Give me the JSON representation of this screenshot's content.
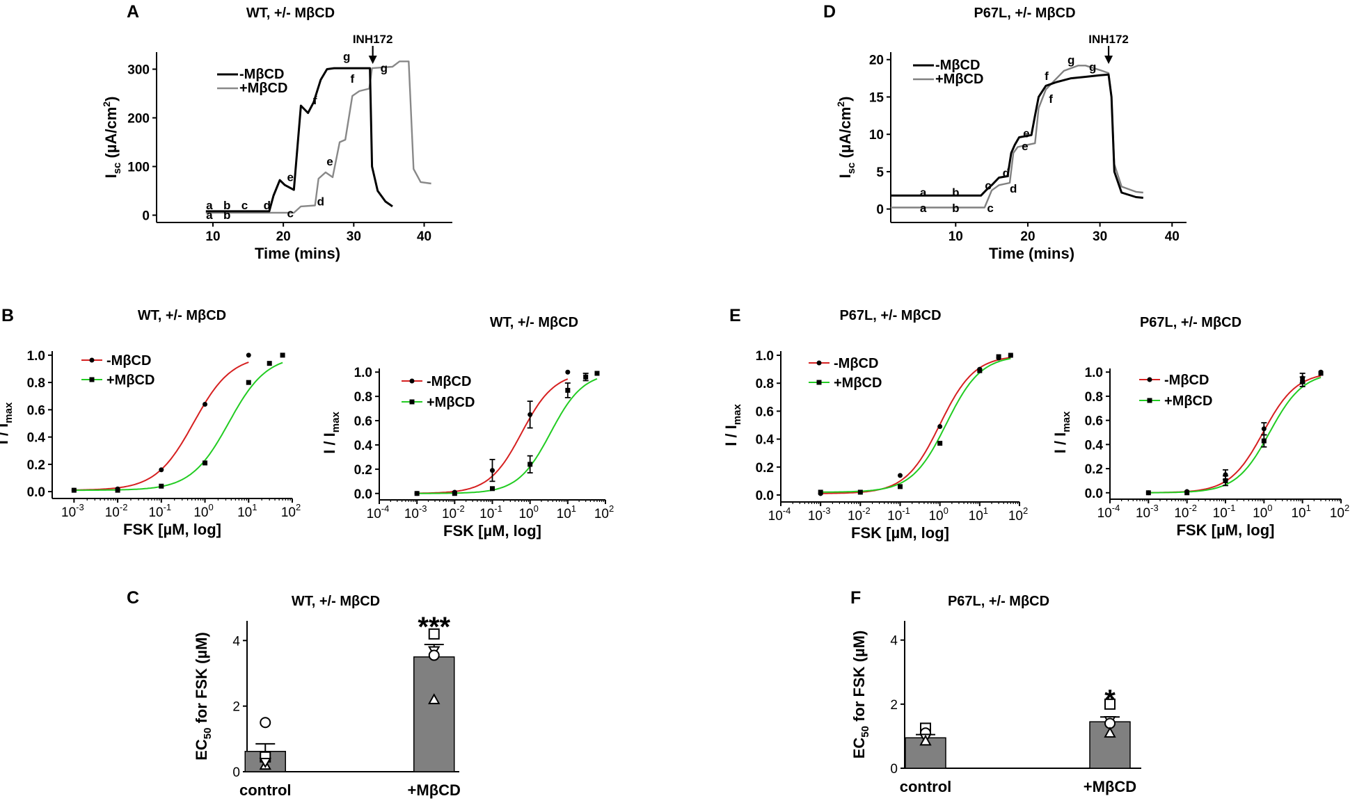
{
  "figure": {
    "panel_labels": [
      "A",
      "B",
      "C",
      "D",
      "E",
      "F"
    ]
  },
  "chart_data": [
    {
      "id": "A",
      "type": "line",
      "title": "WT, +/- MβCD",
      "xlabel": "Time (mins)",
      "ylabel": "Isc (µA/cm²)",
      "ylabel_parts": {
        "main": "I",
        "sub": "sc",
        "unit": " (µA/cm",
        "sup": "2",
        "close": ")"
      },
      "xlim": [
        2,
        44
      ],
      "ylim": [
        -15,
        335
      ],
      "xticks": [
        10,
        20,
        30,
        40
      ],
      "yticks": [
        0,
        100,
        200,
        300
      ],
      "annotation": "INH172",
      "annotation_x": 32.7,
      "series": [
        {
          "name": "-MβCD",
          "color": "#000000",
          "x": [
            9,
            18,
            18.6,
            19.5,
            20.2,
            21.5,
            22.5,
            23.5,
            24.3,
            25.3,
            26.2,
            27.2,
            32.3,
            32.6,
            33.4,
            34.5,
            35.5
          ],
          "y": [
            8,
            8,
            40,
            72,
            62,
            52,
            225,
            210,
            232,
            278,
            300,
            302,
            302,
            100,
            50,
            28,
            18
          ]
        },
        {
          "name": "+MβCD",
          "color": "#888888",
          "x": [
            9,
            21.5,
            22.5,
            24.5,
            25,
            26,
            27,
            28,
            28.8,
            29.8,
            30.8,
            32.2,
            32.6,
            35.5,
            36.5,
            37.8,
            38.5,
            39.5,
            41
          ],
          "y": [
            5,
            5,
            18,
            20,
            75,
            88,
            78,
            150,
            155,
            245,
            255,
            260,
            302,
            305,
            316,
            316,
            95,
            68,
            65
          ]
        }
      ],
      "labels_black": [
        "a",
        "b",
        "c",
        "d",
        "e",
        "f",
        "g"
      ],
      "labels_gray": [
        "a",
        "b",
        "c",
        "d",
        "e",
        "f",
        "g"
      ]
    },
    {
      "id": "D",
      "type": "line",
      "title": "P67L, +/- MβCD",
      "xlabel": "Time (mins)",
      "ylabel": "Isc (µA/cm²)",
      "ylabel_parts": {
        "main": "I",
        "sub": "sc",
        "unit": " (µA/cm",
        "sup": "2",
        "close": ")"
      },
      "xlim": [
        1,
        42
      ],
      "ylim": [
        -1.8,
        21
      ],
      "xticks": [
        10,
        20,
        30,
        40
      ],
      "yticks": [
        0,
        5,
        10,
        15,
        20
      ],
      "annotation": "INH172",
      "annotation_x": 31.2,
      "series": [
        {
          "name": "-MβCD",
          "color": "#000000",
          "x": [
            1,
            13.5,
            14.2,
            15,
            16,
            17.2,
            17.7,
            18.2,
            18.8,
            20.5,
            21,
            21.5,
            22.5,
            24,
            26,
            28,
            30,
            31.2,
            31.6,
            32,
            33,
            35,
            36
          ],
          "y": [
            1.8,
            1.8,
            2.5,
            3.2,
            4.2,
            4.4,
            7.5,
            8.6,
            9.6,
            9.9,
            12.5,
            15,
            16.5,
            17,
            17.5,
            17.7,
            17.9,
            18,
            15,
            5,
            2.2,
            1.6,
            1.5
          ]
        },
        {
          "name": "+MβCD",
          "color": "#808080",
          "x": [
            1,
            14,
            15,
            16,
            17.5,
            18,
            18.6,
            19.5,
            21,
            21.5,
            22.5,
            24,
            25,
            27,
            28,
            30,
            31.2,
            31.6,
            32,
            33,
            35,
            36
          ],
          "y": [
            0.2,
            0.2,
            2.5,
            3.2,
            3.5,
            7.5,
            8.3,
            8.5,
            8.8,
            13.5,
            16,
            17.5,
            18.5,
            19.2,
            19.2,
            18.6,
            18.2,
            15,
            6,
            3,
            2.3,
            2.2
          ]
        }
      ],
      "labels_black": [
        "a",
        "b",
        "c",
        "d",
        "e",
        "f",
        "g"
      ],
      "labels_gray": [
        "a",
        "b",
        "c",
        "d",
        "e",
        "f",
        "g"
      ]
    },
    {
      "id": "B1",
      "type": "scatter",
      "title": "WT, +/- MβCD",
      "xlabel": "FSK [µM,  log]",
      "ylabel": "I / Imax",
      "ylabel_parts": {
        "main": "I / I",
        "sub": "max"
      },
      "x_scale": "log",
      "xlim": [
        -3.5,
        2
      ],
      "ylim": [
        -0.03,
        1.03
      ],
      "xticks_exp": [
        -3,
        -2,
        -1,
        0,
        1,
        2
      ],
      "yticks": [
        0.0,
        0.2,
        0.4,
        0.6,
        0.8,
        1.0
      ],
      "series": [
        {
          "name": "-MβCD",
          "color": "#d62020",
          "marker": "circle",
          "x": [
            0.001,
            0.01,
            0.1,
            1,
            10
          ],
          "y": [
            0.01,
            0.02,
            0.16,
            0.64,
            1.0
          ],
          "ec50": 0.55
        },
        {
          "name": "+MβCD",
          "color": "#22cc22",
          "marker": "square",
          "x": [
            0.001,
            0.01,
            0.1,
            1,
            10,
            30,
            60
          ],
          "y": [
            0.01,
            0.01,
            0.04,
            0.21,
            0.8,
            0.94,
            1.0
          ],
          "ec50": 3.5
        }
      ]
    },
    {
      "id": "B2",
      "type": "scatter",
      "title": "WT, +/- MβCD",
      "xlabel": "FSK [µM,  log]",
      "ylabel": "I / Imax",
      "ylabel_parts": {
        "main": "I / I",
        "sub": "max"
      },
      "x_scale": "log",
      "xlim": [
        -4,
        2
      ],
      "ylim": [
        -0.03,
        1.03
      ],
      "xticks_exp": [
        -4,
        -3,
        -2,
        -1,
        0,
        1,
        2
      ],
      "yticks": [
        0.0,
        0.2,
        0.4,
        0.6,
        0.8,
        1.0
      ],
      "series": [
        {
          "name": "-MβCD",
          "color": "#d62020",
          "marker": "circle",
          "x": [
            0.001,
            0.01,
            0.1,
            1,
            10
          ],
          "y": [
            0.0,
            0.01,
            0.19,
            0.65,
            1.0
          ],
          "err": [
            0,
            0,
            0.09,
            0.11,
            0
          ],
          "ec50": 0.6
        },
        {
          "name": "+MβCD",
          "color": "#22cc22",
          "marker": "square",
          "x": [
            0.001,
            0.01,
            0.1,
            1,
            10,
            30,
            60
          ],
          "y": [
            0.0,
            0.0,
            0.04,
            0.24,
            0.85,
            0.96,
            0.99
          ],
          "err": [
            0,
            0,
            0,
            0.07,
            0.06,
            0.03,
            0
          ],
          "ec50": 3.5
        }
      ]
    },
    {
      "id": "E1",
      "type": "scatter",
      "title": "P67L, +/- MβCD",
      "xlabel": "FSK [µM,  log]",
      "ylabel": "I / Imax",
      "ylabel_parts": {
        "main": "I / I",
        "sub": "max"
      },
      "x_scale": "log",
      "xlim": [
        -4,
        2
      ],
      "ylim": [
        -0.03,
        1.03
      ],
      "xticks_exp": [
        -4,
        -3,
        -2,
        -1,
        0,
        1,
        2
      ],
      "yticks": [
        0.0,
        0.2,
        0.4,
        0.6,
        0.8,
        1.0
      ],
      "series": [
        {
          "name": "-MβCD",
          "color": "#d62020",
          "marker": "circle",
          "x": [
            0.001,
            0.01,
            0.1,
            1,
            10,
            30,
            60
          ],
          "y": [
            0.01,
            0.02,
            0.14,
            0.49,
            0.9,
            0.98,
            1.0
          ],
          "ec50": 1.0
        },
        {
          "name": "+MβCD",
          "color": "#22cc22",
          "marker": "square",
          "x": [
            0.001,
            0.01,
            0.1,
            1,
            10,
            30,
            60
          ],
          "y": [
            0.02,
            0.02,
            0.06,
            0.37,
            0.89,
            0.99,
            1.0
          ],
          "ec50": 1.45
        }
      ]
    },
    {
      "id": "E2",
      "type": "scatter",
      "title": "P67L, +/- MβCD",
      "xlabel": "FSK [µM,  log]",
      "ylabel": "I / Imax",
      "ylabel_parts": {
        "main": "I / I",
        "sub": "max"
      },
      "x_scale": "log",
      "xlim": [
        -4,
        2
      ],
      "ylim": [
        -0.03,
        1.03
      ],
      "xticks_exp": [
        -4,
        -3,
        -2,
        -1,
        0,
        1,
        2
      ],
      "yticks": [
        0.0,
        0.2,
        0.4,
        0.6,
        0.8,
        1.0
      ],
      "series": [
        {
          "name": "-MβCD",
          "color": "#d62020",
          "marker": "circle",
          "x": [
            0.001,
            0.01,
            0.1,
            1,
            10,
            30
          ],
          "y": [
            0.0,
            0.01,
            0.15,
            0.53,
            0.95,
            1.0
          ],
          "err": [
            0,
            0,
            0.04,
            0.05,
            0.04,
            0
          ],
          "ec50": 0.95
        },
        {
          "name": "+MβCD",
          "color": "#22cc22",
          "marker": "square",
          "x": [
            0.001,
            0.01,
            0.1,
            1,
            10,
            30
          ],
          "y": [
            0.0,
            0.0,
            0.1,
            0.43,
            0.92,
            0.99
          ],
          "err": [
            0,
            0,
            0.04,
            0.05,
            0.04,
            0
          ],
          "ec50": 1.4
        }
      ]
    },
    {
      "id": "C",
      "type": "bar",
      "title": "WT, +/- MβCD",
      "xlabel": "",
      "ylabel": "EC50 for FSK (µM)",
      "ylabel_parts": {
        "main": "EC",
        "sub": "50",
        "unit": " for FSK (µM)"
      },
      "ylim": [
        0,
        4.6
      ],
      "yticks": [
        0,
        2,
        4
      ],
      "categories": [
        "control",
        "+MβCD"
      ],
      "values": [
        0.62,
        3.5
      ],
      "errors": [
        0.23,
        0.38
      ],
      "significance": [
        "",
        "***"
      ],
      "points": [
        [
          {
            "shape": "circle",
            "v": 1.5
          },
          {
            "shape": "square",
            "v": 0.45
          },
          {
            "shape": "triangle",
            "v": 0.2
          },
          {
            "shape": "diamond",
            "v": 0.3
          }
        ],
        [
          {
            "shape": "square",
            "v": 4.2
          },
          {
            "shape": "diamond",
            "v": 3.7
          },
          {
            "shape": "circle",
            "v": 3.55
          },
          {
            "shape": "triangle",
            "v": 2.2
          }
        ]
      ]
    },
    {
      "id": "F",
      "type": "bar",
      "title": "P67L, +/- MβCD",
      "xlabel": "",
      "ylabel": "EC50 for FSK (µM)",
      "ylabel_parts": {
        "main": "EC",
        "sub": "50",
        "unit": " for FSK (µM)"
      },
      "ylim": [
        0,
        4.6
      ],
      "yticks": [
        0,
        2,
        4
      ],
      "categories": [
        "control",
        "+MβCD"
      ],
      "values": [
        0.95,
        1.45
      ],
      "errors": [
        0.1,
        0.15
      ],
      "significance": [
        "",
        "*"
      ],
      "points": [
        [
          {
            "shape": "square",
            "v": 1.25
          },
          {
            "shape": "circle",
            "v": 1.1
          },
          {
            "shape": "diamond",
            "v": 0.95
          },
          {
            "shape": "triangle",
            "v": 0.85
          }
        ],
        [
          {
            "shape": "square",
            "v": 2.0
          },
          {
            "shape": "diamond",
            "v": 1.5
          },
          {
            "shape": "circle",
            "v": 1.4
          },
          {
            "shape": "triangle",
            "v": 1.1
          }
        ]
      ]
    }
  ]
}
